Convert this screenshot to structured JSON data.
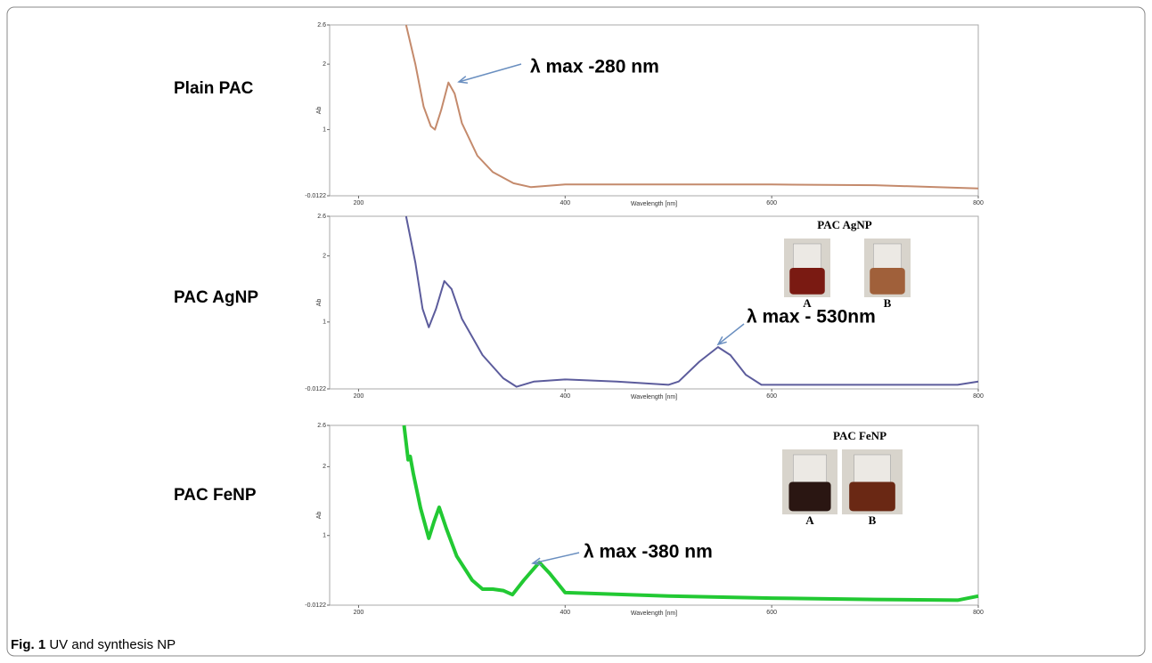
{
  "caption": {
    "label": "Fig. 1",
    "text": "UV and synthesis NP"
  },
  "chart_data": [
    {
      "type": "line",
      "title": "Plain PAC",
      "x_label": "Wavelength [nm]",
      "y_label": "Ab",
      "annotation": "λ max -280 nm",
      "color": "#c48a6c",
      "xlim": [
        172,
        800
      ],
      "xticks": [
        200,
        400,
        600,
        800
      ],
      "ylim": [
        -0.0122,
        2.6
      ],
      "yticks": [
        -0.0122,
        1,
        2,
        2.6
      ],
      "x": [
        246,
        255,
        263,
        270,
        274,
        280,
        287,
        293,
        300,
        315,
        330,
        350,
        367,
        400,
        600,
        700,
        800
      ],
      "values": [
        2.6,
        2.0,
        1.35,
        1.05,
        1.0,
        1.3,
        1.72,
        1.55,
        1.1,
        0.6,
        0.35,
        0.18,
        0.12,
        0.16,
        0.16,
        0.15,
        0.1
      ]
    },
    {
      "type": "line",
      "title": "PAC AgNP",
      "x_label": "Wavelength [nm]",
      "y_label": "Ab",
      "annotation": "λ max - 530nm",
      "color": "#5c5c9c",
      "inset": {
        "title": "PAC AgNP",
        "labels": [
          "A",
          "B"
        ]
      },
      "xlim": [
        172,
        800
      ],
      "xticks": [
        200,
        400,
        600,
        800
      ],
      "ylim": [
        -0.0122,
        2.6
      ],
      "yticks": [
        -0.0122,
        1,
        2,
        2.6
      ],
      "x": [
        246,
        255,
        262,
        268,
        275,
        283,
        290,
        300,
        320,
        340,
        353,
        370,
        400,
        450,
        500,
        510,
        530,
        548,
        560,
        575,
        590,
        700,
        780,
        800
      ],
      "values": [
        2.6,
        1.9,
        1.2,
        0.92,
        1.2,
        1.62,
        1.5,
        1.05,
        0.5,
        0.15,
        0.02,
        0.1,
        0.13,
        0.1,
        0.05,
        0.1,
        0.4,
        0.62,
        0.5,
        0.2,
        0.05,
        0.05,
        0.05,
        0.1
      ]
    },
    {
      "type": "line",
      "title": "PAC FeNP",
      "x_label": "Wavelength [nm]",
      "y_label": "Ab",
      "annotation": "λ max -380 nm",
      "color": "#22c933",
      "inset": {
        "title": "PAC FeNP",
        "labels": [
          "A",
          "B"
        ]
      },
      "xlim": [
        172,
        800
      ],
      "xticks": [
        200,
        400,
        600,
        800
      ],
      "ylim": [
        -0.0122,
        2.6
      ],
      "yticks": [
        -0.0122,
        1,
        2,
        2.6
      ],
      "x": [
        244,
        248,
        250,
        253,
        260,
        268,
        273,
        278,
        285,
        295,
        310,
        320,
        330,
        340,
        349,
        360,
        375,
        385,
        400,
        500,
        600,
        700,
        780,
        800
      ],
      "values": [
        2.6,
        2.1,
        2.15,
        1.9,
        1.4,
        0.96,
        1.2,
        1.41,
        1.1,
        0.7,
        0.35,
        0.22,
        0.22,
        0.2,
        0.14,
        0.35,
        0.61,
        0.45,
        0.17,
        0.12,
        0.09,
        0.07,
        0.06,
        0.12
      ]
    }
  ]
}
